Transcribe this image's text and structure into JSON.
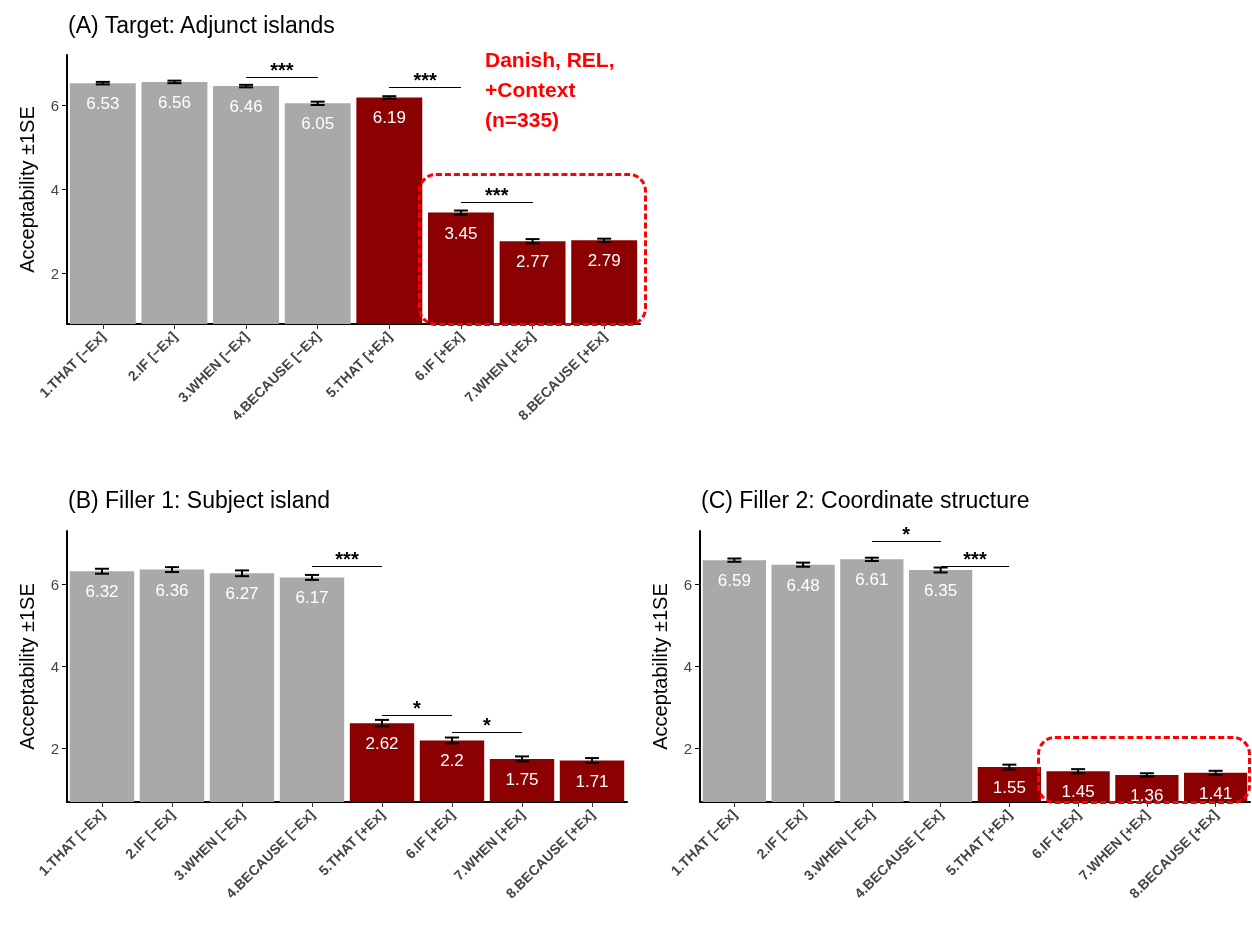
{
  "chart_data": [
    {
      "type": "bar",
      "title": "(A) Target: Adjunct islands",
      "ylabel": "Acceptability ±1SE",
      "categories": [
        "1.THAT [−Ex]",
        "2.IF [−Ex]",
        "3.WHEN [−Ex]",
        "4.BECAUSE [−Ex]",
        "5.THAT [+Ex]",
        "6.IF [+Ex]",
        "7.WHEN [+Ex]",
        "8.BECAUSE [+Ex]"
      ],
      "values": [
        6.53,
        6.56,
        6.46,
        6.05,
        6.19,
        3.45,
        2.77,
        2.79
      ],
      "colors": [
        "#a9a9a9",
        "#a9a9a9",
        "#a9a9a9",
        "#a9a9a9",
        "#8b0000",
        "#8b0000",
        "#8b0000",
        "#8b0000"
      ],
      "errors": [
        0.03,
        0.03,
        0.03,
        0.04,
        0.03,
        0.05,
        0.05,
        0.04
      ],
      "ylim": [
        0.8,
        7.2
      ],
      "yticks": [
        2,
        4,
        6
      ],
      "data_labels": true,
      "annotations": [
        "***",
        "***",
        "***",
        "Danish, REL, +Context (n=335)"
      ]
    },
    {
      "type": "bar",
      "title": "(B) Filler 1: Subject island",
      "ylabel": "Acceptability ±1SE",
      "categories": [
        "1.THAT [−Ex]",
        "2.IF [−Ex]",
        "3.WHEN [−Ex]",
        "4.BECAUSE [−Ex]",
        "5.THAT [+Ex]",
        "6.IF [+Ex]",
        "7.WHEN [+Ex]",
        "8.BECAUSE [+Ex]"
      ],
      "values": [
        6.32,
        6.36,
        6.27,
        6.17,
        2.62,
        2.2,
        1.75,
        1.71
      ],
      "colors": [
        "#a9a9a9",
        "#a9a9a9",
        "#a9a9a9",
        "#a9a9a9",
        "#8b0000",
        "#8b0000",
        "#8b0000",
        "#8b0000"
      ],
      "errors": [
        0.06,
        0.06,
        0.07,
        0.06,
        0.08,
        0.07,
        0.06,
        0.06
      ],
      "ylim": [
        0.7,
        7.3
      ],
      "yticks": [
        2,
        4,
        6
      ],
      "data_labels": true,
      "annotations": [
        "***",
        "*",
        "*"
      ]
    },
    {
      "type": "bar",
      "title": "(C) Filler 2: Coordinate structure",
      "ylabel": "Acceptability ±1SE",
      "categories": [
        "1.THAT [−Ex]",
        "2.IF [−Ex]",
        "3.WHEN [−Ex]",
        "4.BECAUSE [−Ex]",
        "5.THAT [+Ex]",
        "6.IF [+Ex]",
        "7.WHEN [+Ex]",
        "8.BECAUSE [+Ex]"
      ],
      "values": [
        6.59,
        6.48,
        6.61,
        6.35,
        1.55,
        1.45,
        1.36,
        1.41
      ],
      "colors": [
        "#a9a9a9",
        "#a9a9a9",
        "#a9a9a9",
        "#a9a9a9",
        "#8b0000",
        "#8b0000",
        "#8b0000",
        "#8b0000"
      ],
      "errors": [
        0.04,
        0.05,
        0.04,
        0.06,
        0.06,
        0.05,
        0.04,
        0.05
      ],
      "ylim": [
        0.7,
        7.3
      ],
      "yticks": [
        2,
        4,
        6
      ],
      "data_labels": true,
      "annotations": [
        "*",
        "***"
      ]
    }
  ]
}
